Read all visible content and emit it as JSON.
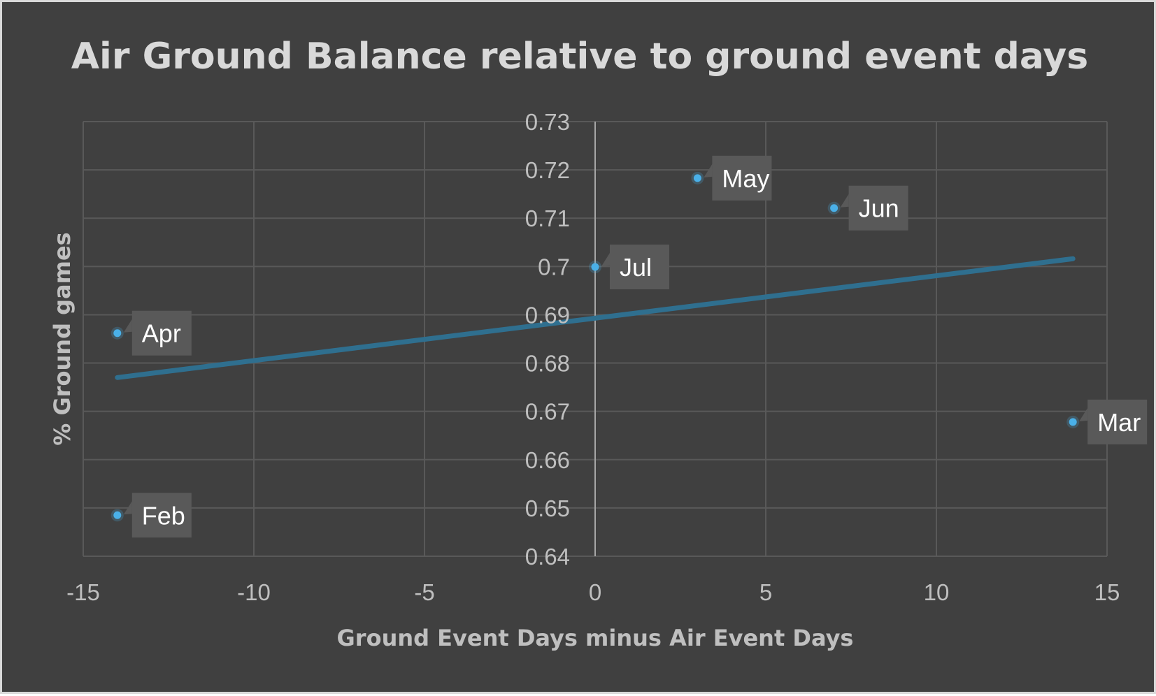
{
  "chart_data": {
    "type": "scatter",
    "title": "Air Ground Balance relative to ground event days",
    "xlabel": "Ground Event Days minus Air Event Days",
    "ylabel": "% Ground games",
    "xlim": [
      -15,
      15
    ],
    "ylim": [
      0.64,
      0.73
    ],
    "x_ticks": [
      -15,
      -10,
      -5,
      0,
      5,
      10,
      15
    ],
    "x_tick_labels": [
      "-15",
      "-10",
      "-5",
      "0",
      "5",
      "10",
      "15"
    ],
    "y_ticks": [
      0.64,
      0.65,
      0.66,
      0.67,
      0.68,
      0.69,
      0.7,
      0.71,
      0.72,
      0.73
    ],
    "y_tick_labels": [
      "0.64",
      "0.65",
      "0.66",
      "0.67",
      "0.68",
      "0.69",
      "0.7",
      "0.71",
      "0.72",
      "0.73"
    ],
    "grid": true,
    "legend": "none",
    "points": [
      {
        "label": "Feb",
        "x": -14,
        "y": 0.6485
      },
      {
        "label": "Mar",
        "x": 14,
        "y": 0.6678
      },
      {
        "label": "Apr",
        "x": -14,
        "y": 0.6862
      },
      {
        "label": "May",
        "x": 3,
        "y": 0.7183
      },
      {
        "label": "Jun",
        "x": 7,
        "y": 0.7121
      },
      {
        "label": "Jul",
        "x": 0,
        "y": 0.6999
      }
    ],
    "trendline": {
      "type": "linear",
      "x": [
        -14,
        14
      ],
      "y": [
        0.677,
        0.7016
      ]
    },
    "colors": {
      "background": "#404040",
      "border": "#d9d9d9",
      "marker": "#4ab0e8",
      "trendline": "#2f6f8f",
      "grid": "#595959",
      "label_box": "#595959"
    }
  }
}
